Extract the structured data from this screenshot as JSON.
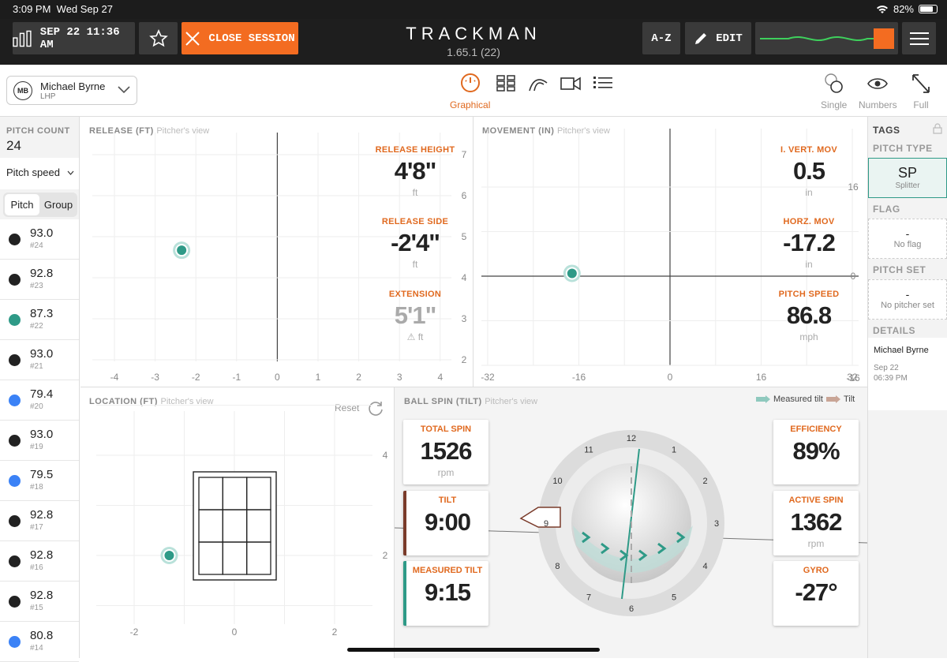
{
  "status": {
    "time": "3:09 PM",
    "date": "Wed Sep 27",
    "battery": "82%",
    "battery_level": 0.82
  },
  "topbar": {
    "session_label": "SEP 22 11:36 AM",
    "close_label": "CLOSE SESSION",
    "brand": "TRACKMAN",
    "version": "1.65.1 (22)",
    "az_label": "A-Z",
    "edit_label": "EDIT"
  },
  "player": {
    "initials": "MB",
    "name": "Michael Byrne",
    "hand": "LHP"
  },
  "views": {
    "active": "Graphical",
    "single": "Single",
    "numbers": "Numbers",
    "full": "Full"
  },
  "left": {
    "count_label": "PITCH COUNT",
    "count": "24",
    "sort_label": "Pitch speed",
    "tabs": [
      "Pitch",
      "Group"
    ],
    "pitches": [
      {
        "speed": "93.0",
        "num": "#24",
        "color": "#222222"
      },
      {
        "speed": "92.8",
        "num": "#23",
        "color": "#222222"
      },
      {
        "speed": "87.3",
        "num": "#22",
        "color": "#2e9a87"
      },
      {
        "speed": "93.0",
        "num": "#21",
        "color": "#222222"
      },
      {
        "speed": "79.4",
        "num": "#20",
        "color": "#3b82f6"
      },
      {
        "speed": "93.0",
        "num": "#19",
        "color": "#222222"
      },
      {
        "speed": "79.5",
        "num": "#18",
        "color": "#3b82f6"
      },
      {
        "speed": "92.8",
        "num": "#17",
        "color": "#222222"
      },
      {
        "speed": "92.8",
        "num": "#16",
        "color": "#222222"
      },
      {
        "speed": "92.8",
        "num": "#15",
        "color": "#222222"
      },
      {
        "speed": "80.8",
        "num": "#14",
        "color": "#3b82f6"
      }
    ]
  },
  "release": {
    "title": "RELEASE (FT)",
    "view": "Pitcher's view",
    "x_ticks": [
      "-4",
      "-3",
      "-2",
      "-1",
      "0",
      "1",
      "2",
      "3",
      "4"
    ],
    "y_ticks": [
      "7",
      "6",
      "5",
      "4",
      "3",
      "2"
    ],
    "height_label": "RELEASE HEIGHT",
    "height": "4'8\"",
    "height_unit": "ft",
    "side_label": "RELEASE SIDE",
    "side": "-2'4\"",
    "side_unit": "ft",
    "ext_label": "EXTENSION",
    "ext": "5'1\"",
    "ext_unit": "ft",
    "point": {
      "x": -2.35,
      "y": 4.67
    }
  },
  "movement": {
    "title": "MOVEMENT (IN)",
    "view": "Pitcher's view",
    "x_ticks": [
      "-32",
      "-16",
      "0",
      "16",
      "32"
    ],
    "y_ticks": [
      "16",
      "0",
      "-16"
    ],
    "ivb_label": "I. VERT. MOV",
    "ivb": "0.5",
    "ivb_unit": "in",
    "hb_label": "HORZ. MOV",
    "hb": "-17.2",
    "hb_unit": "in",
    "speed_label": "PITCH SPEED",
    "speed": "86.8",
    "speed_unit": "mph",
    "point": {
      "x": -17.2,
      "y": 0.5
    }
  },
  "location": {
    "title": "LOCATION (FT)",
    "view": "Pitcher's view",
    "reset": "Reset",
    "x_ticks": [
      "-2",
      "0",
      "2"
    ],
    "y_ticks": [
      "4",
      "2"
    ],
    "point": {
      "x": -1.3,
      "y": 2.0
    }
  },
  "spin": {
    "title": "BALL SPIN (TILT)",
    "view": "Pitcher's view",
    "legend_measured": "Measured tilt",
    "legend_tilt": "Tilt",
    "total_label": "TOTAL SPIN",
    "total": "1526",
    "total_unit": "rpm",
    "tilt_label": "TILT",
    "tilt": "9:00",
    "mtilt_label": "MEASURED TILT",
    "mtilt": "9:15",
    "eff_label": "EFFICIENCY",
    "eff": "89%",
    "active_label": "ACTIVE SPIN",
    "active": "1362",
    "active_unit": "rpm",
    "gyro_label": "GYRO",
    "gyro": "-27°",
    "clock": [
      "12",
      "1",
      "2",
      "3",
      "4",
      "5",
      "6",
      "7",
      "8",
      "9",
      "10",
      "11"
    ]
  },
  "right": {
    "tags": "TAGS",
    "pitch_type_label": "PITCH TYPE",
    "pitch_type": "SP",
    "pitch_type_name": "Splitter",
    "flag_label": "FLAG",
    "flag_value": "-",
    "flag_name": "No flag",
    "set_label": "PITCH SET",
    "set_value": "-",
    "set_name": "No pitcher set",
    "details_label": "DETAILS",
    "detail_name": "Michael Byrne",
    "detail_date": "Sep 22",
    "detail_time": "06:39 PM"
  }
}
